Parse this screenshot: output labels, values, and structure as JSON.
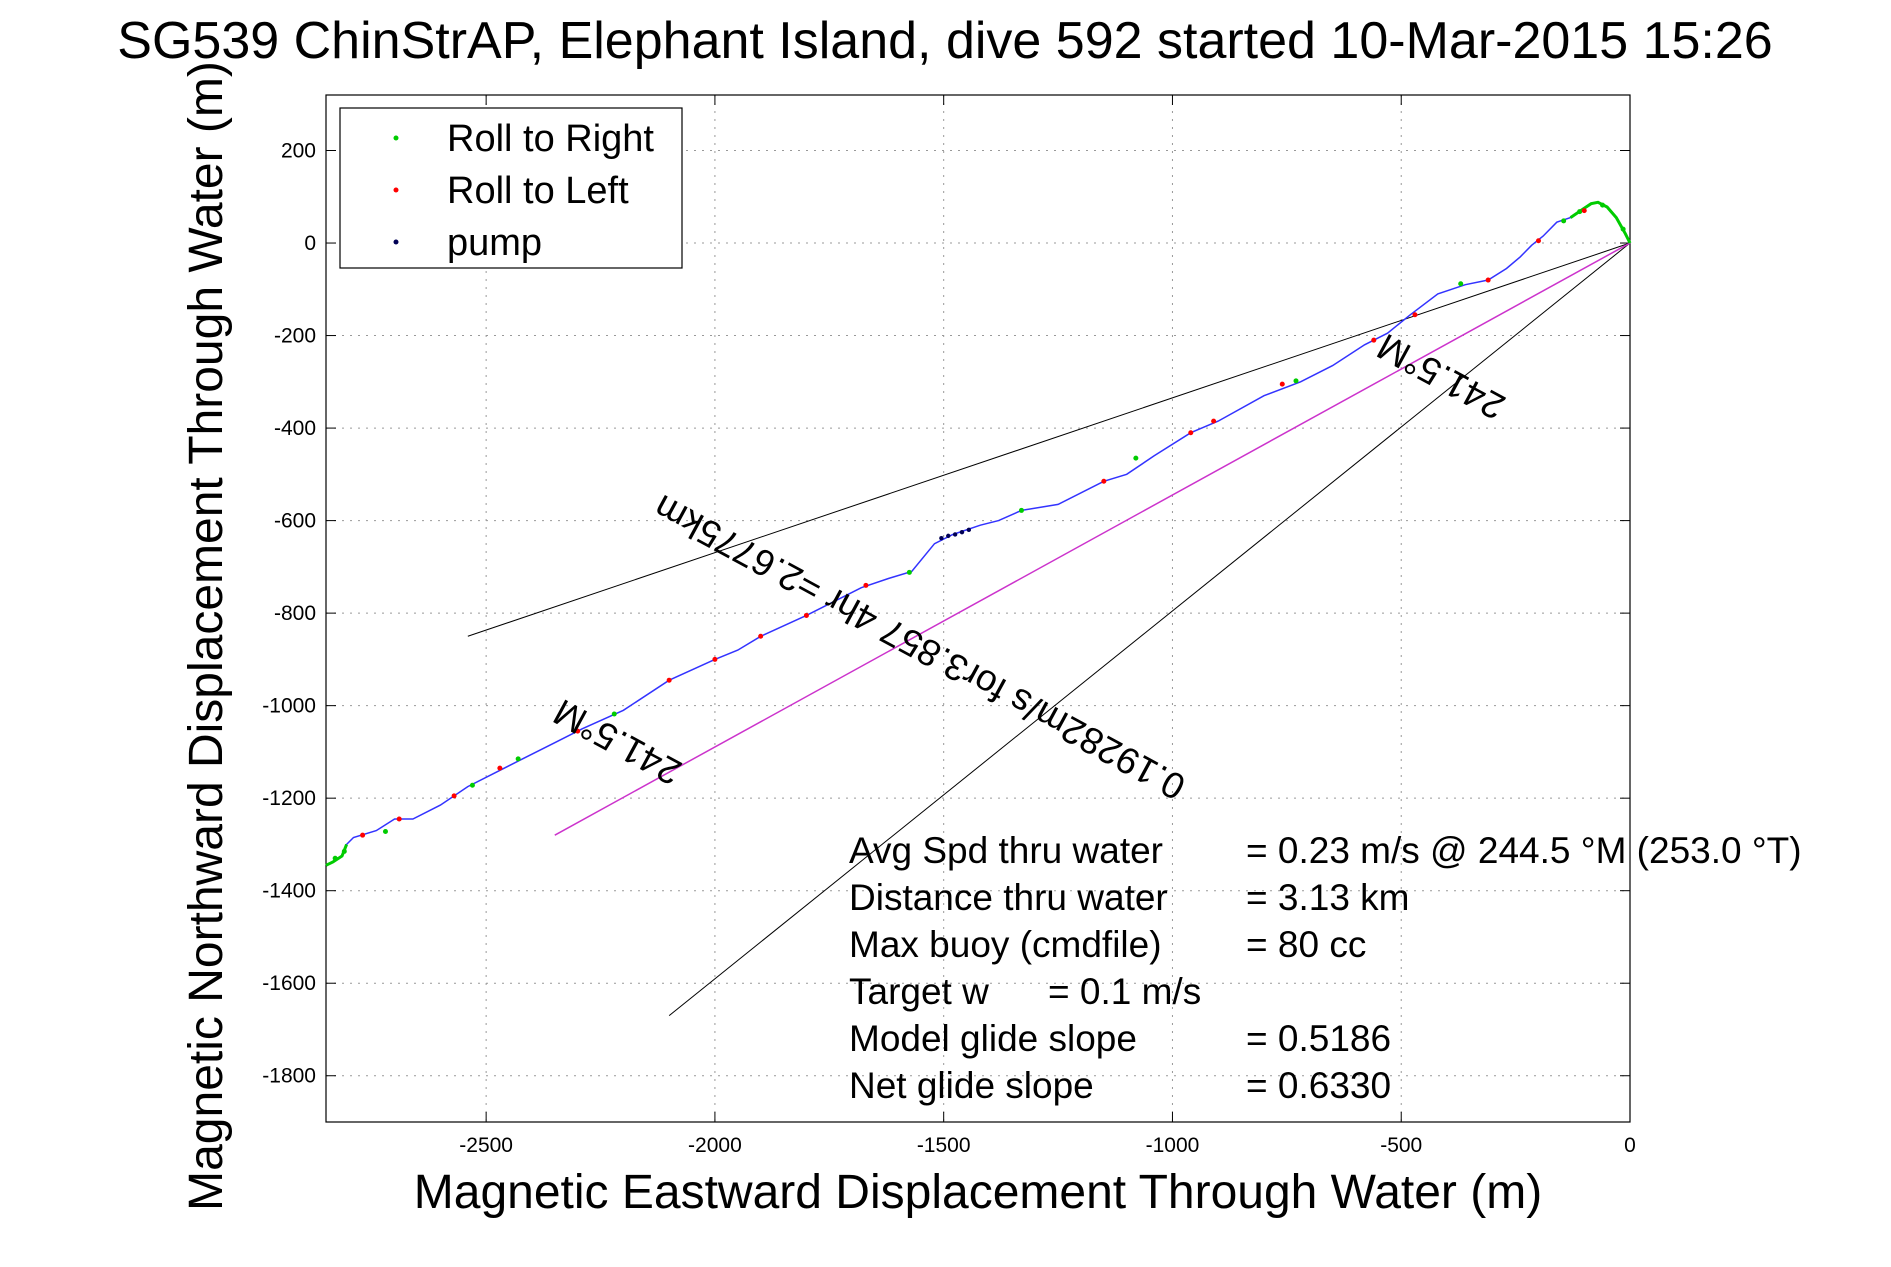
{
  "chart_data": {
    "type": "line",
    "title": "SG539 ChinStrAP, Elephant Island, dive 592 started 10-Mar-2015 15:26",
    "xlabel": "Magnetic Eastward Displacement Through Water (m)",
    "ylabel": "Magnetic Northward Displacement Through Water (m)",
    "xlim": [
      -2850,
      0
    ],
    "ylim": [
      -1900,
      320
    ],
    "x_ticks": [
      -2500,
      -2000,
      -1500,
      -1000,
      -500,
      0
    ],
    "y_ticks": [
      200,
      0,
      -200,
      -400,
      -600,
      -800,
      -1000,
      -1200,
      -1400,
      -1600,
      -1800
    ],
    "grid": true,
    "legend_position": "top-left",
    "legend": [
      {
        "label": "Roll to Right",
        "color": "#00cc00",
        "marker": "dot"
      },
      {
        "label": "Roll to Left",
        "color": "#ff0000",
        "marker": "dot"
      },
      {
        "label": "pump",
        "color": "#000055",
        "marker": "dot"
      }
    ],
    "track_color": "#3333ff",
    "course_color": "#cc33cc",
    "track": [
      [
        0,
        0
      ],
      [
        -10,
        20
      ],
      [
        -30,
        55
      ],
      [
        -50,
        78
      ],
      [
        -70,
        88
      ],
      [
        -85,
        85
      ],
      [
        -105,
        72
      ],
      [
        -130,
        55
      ],
      [
        -160,
        45
      ],
      [
        -190,
        15
      ],
      [
        -215,
        -5
      ],
      [
        -240,
        -30
      ],
      [
        -270,
        -55
      ],
      [
        -310,
        -80
      ],
      [
        -360,
        -90
      ],
      [
        -420,
        -110
      ],
      [
        -480,
        -155
      ],
      [
        -530,
        -195
      ],
      [
        -580,
        -220
      ],
      [
        -650,
        -265
      ],
      [
        -720,
        -300
      ],
      [
        -800,
        -330
      ],
      [
        -900,
        -385
      ],
      [
        -960,
        -410
      ],
      [
        -1040,
        -460
      ],
      [
        -1100,
        -500
      ],
      [
        -1150,
        -515
      ],
      [
        -1250,
        -565
      ],
      [
        -1330,
        -578
      ],
      [
        -1380,
        -600
      ],
      [
        -1420,
        -610
      ],
      [
        -1480,
        -630
      ],
      [
        -1520,
        -650
      ],
      [
        -1570,
        -710
      ],
      [
        -1620,
        -725
      ],
      [
        -1680,
        -745
      ],
      [
        -1740,
        -775
      ],
      [
        -1800,
        -805
      ],
      [
        -1900,
        -850
      ],
      [
        -1950,
        -880
      ],
      [
        -2000,
        -900
      ],
      [
        -2100,
        -945
      ],
      [
        -2200,
        -1010
      ],
      [
        -2290,
        -1050
      ],
      [
        -2350,
        -1080
      ],
      [
        -2420,
        -1115
      ],
      [
        -2480,
        -1145
      ],
      [
        -2540,
        -1175
      ],
      [
        -2600,
        -1215
      ],
      [
        -2660,
        -1245
      ],
      [
        -2700,
        -1245
      ],
      [
        -2740,
        -1270
      ],
      [
        -2790,
        -1285
      ],
      [
        -2805,
        -1300
      ],
      [
        -2815,
        -1325
      ],
      [
        -2835,
        -1338
      ],
      [
        -2850,
        -1345
      ]
    ],
    "roll_right": [
      [
        -15,
        30
      ],
      [
        -60,
        82
      ],
      [
        -110,
        68
      ],
      [
        -145,
        48
      ],
      [
        -370,
        -88
      ],
      [
        -730,
        -298
      ],
      [
        -1080,
        -465
      ],
      [
        -1330,
        -578
      ],
      [
        -1575,
        -712
      ],
      [
        -2220,
        -1018
      ],
      [
        -2430,
        -1115
      ],
      [
        -2530,
        -1172
      ],
      [
        -2720,
        -1272
      ],
      [
        -2810,
        -1315
      ],
      [
        -2830,
        -1330
      ]
    ],
    "roll_left": [
      [
        -100,
        70
      ],
      [
        -200,
        5
      ],
      [
        -310,
        -80
      ],
      [
        -470,
        -155
      ],
      [
        -560,
        -210
      ],
      [
        -760,
        -305
      ],
      [
        -910,
        -385
      ],
      [
        -960,
        -410
      ],
      [
        -1150,
        -515
      ],
      [
        -1670,
        -740
      ],
      [
        -1800,
        -805
      ],
      [
        -1900,
        -850
      ],
      [
        -2000,
        -900
      ],
      [
        -2100,
        -945
      ],
      [
        -2300,
        -1055
      ],
      [
        -2470,
        -1135
      ],
      [
        -2570,
        -1195
      ],
      [
        -2690,
        -1245
      ],
      [
        -2770,
        -1280
      ]
    ],
    "pump": [
      [
        -1445,
        -620
      ],
      [
        -1460,
        -625
      ],
      [
        -1475,
        -630
      ],
      [
        -1490,
        -633
      ],
      [
        -1505,
        -638
      ]
    ],
    "course_line": {
      "from": [
        0,
        0
      ],
      "to": [
        -2350,
        -1280
      ]
    },
    "bearing_lines": [
      {
        "from": [
          0,
          0
        ],
        "to": [
          -2540,
          -850
        ]
      },
      {
        "from": [
          0,
          0
        ],
        "to": [
          -2100,
          -1670
        ]
      }
    ],
    "annotations": [
      {
        "text": "241.5°M",
        "x": -2200,
        "y": -1055,
        "angle_deg": 208.5
      },
      {
        "text": "241.5°M",
        "x": -400,
        "y": -265,
        "angle_deg": 208.5
      },
      {
        "text": "0.19282m/s for3.857 4hr =2.6775km",
        "x": -1540,
        "y": -850,
        "angle_deg": 208.5
      }
    ]
  },
  "stats": [
    {
      "label": "Avg Spd thru water",
      "value": "=  0.23 m/s @ 244.5 °M (253.0 °T)"
    },
    {
      "label": "Distance thru water",
      "value": "=  3.13 km"
    },
    {
      "label": "Max buoy (cmdfile)",
      "value": "= 80 cc"
    },
    {
      "label": "Target w",
      "value": "= 0.1 m/s"
    },
    {
      "label": "Model glide slope",
      "value": "= 0.5186"
    },
    {
      "label": "Net glide slope",
      "value": "= 0.6330"
    }
  ]
}
